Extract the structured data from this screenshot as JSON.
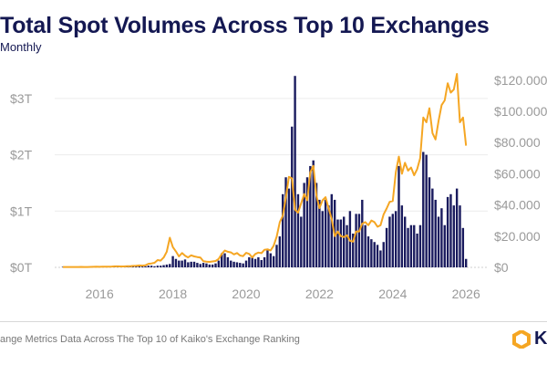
{
  "chart_data": {
    "type": "bar+line",
    "title": "Total Spot Volumes Across Top 10 Exchanges",
    "subtitle": "Monthly",
    "x_start": "2015-01",
    "x_frequency": "monthly",
    "x_ticks": [
      "2016",
      "2018",
      "2020",
      "2022",
      "2024",
      "2026"
    ],
    "y_left": {
      "ticks": [
        "$0T",
        "$1T",
        "$2T",
        "$3T"
      ],
      "tick_values": [
        0,
        1,
        2,
        3
      ],
      "range": [
        0,
        3.5
      ],
      "unit": "trillion USD"
    },
    "y_right": {
      "ticks": [
        "$0",
        "$20.000",
        "$40.000",
        "$60.000",
        "$80.000",
        "$100.000",
        "$120.000"
      ],
      "tick_values": [
        0,
        20000,
        40000,
        60000,
        80000,
        100000,
        120000
      ],
      "range": [
        0,
        124000
      ]
    },
    "grid": true,
    "series": [
      {
        "type": "bar",
        "axis": "left",
        "color": "#1a1b5e",
        "values": [
          0.01,
          0.01,
          0.01,
          0.01,
          0.01,
          0.01,
          0.01,
          0.01,
          0.01,
          0.01,
          0.01,
          0.01,
          0.01,
          0.01,
          0.01,
          0.01,
          0.02,
          0.03,
          0.02,
          0.01,
          0.01,
          0.02,
          0.02,
          0.03,
          0.03,
          0.03,
          0.02,
          0.02,
          0.03,
          0.03,
          0.02,
          0.03,
          0.03,
          0.04,
          0.05,
          0.06,
          0.2,
          0.15,
          0.12,
          0.12,
          0.14,
          0.09,
          0.1,
          0.1,
          0.08,
          0.06,
          0.08,
          0.07,
          0.05,
          0.05,
          0.07,
          0.12,
          0.25,
          0.25,
          0.18,
          0.12,
          0.1,
          0.09,
          0.08,
          0.07,
          0.12,
          0.18,
          0.2,
          0.15,
          0.18,
          0.13,
          0.18,
          0.3,
          0.25,
          0.2,
          0.4,
          0.55,
          1.3,
          1.6,
          1.4,
          2.5,
          3.4,
          1.3,
          0.9,
          1.5,
          1.6,
          1.8,
          1.9,
          1.5,
          1.2,
          1.0,
          1.2,
          1.1,
          1.3,
          1.2,
          0.85,
          0.85,
          0.9,
          0.75,
          1.0,
          0.6,
          0.95,
          0.95,
          1.2,
          0.75,
          0.55,
          0.5,
          0.45,
          0.4,
          0.3,
          0.45,
          0.7,
          0.9,
          0.95,
          1.0,
          1.8,
          1.1,
          0.9,
          0.7,
          0.75,
          0.75,
          0.6,
          0.75,
          2.05,
          2.0,
          1.6,
          1.4,
          1.2,
          0.9,
          1.05,
          0.75,
          1.25,
          1.3,
          1.1,
          1.4,
          1.1,
          0.7,
          0.15
        ]
      },
      {
        "type": "line",
        "axis": "right",
        "color": "#f5a623",
        "values": [
          220,
          250,
          250,
          230,
          230,
          260,
          280,
          230,
          240,
          310,
          380,
          430,
          370,
          440,
          420,
          450,
          530,
          670,
          620,
          570,
          610,
          700,
          740,
          960,
          1000,
          1200,
          1100,
          1300,
          2300,
          2500,
          2900,
          4700,
          4300,
          6400,
          10000,
          19000,
          13000,
          10300,
          7000,
          9200,
          7500,
          6400,
          7700,
          7000,
          6600,
          6300,
          4000,
          3700,
          3500,
          3800,
          4100,
          5300,
          8600,
          10800,
          10000,
          9600,
          8300,
          9200,
          7600,
          7200,
          9300,
          8600,
          6400,
          8600,
          9500,
          9100,
          11300,
          11600,
          10800,
          13800,
          19700,
          29000,
          33000,
          45000,
          58000,
          57000,
          37000,
          35000,
          41000,
          47000,
          43000,
          61000,
          65000,
          46000,
          38000,
          43000,
          45000,
          38000,
          31000,
          20000,
          23000,
          20000,
          19400,
          20500,
          17000,
          16500,
          23000,
          23000,
          28000,
          29000,
          27000,
          30000,
          29000,
          26000,
          27000,
          34000,
          37700,
          42000,
          42500,
          61000,
          71000,
          60000,
          67000,
          62000,
          64000,
          59000,
          63000,
          70000,
          96000,
          93000,
          102000,
          86000,
          82000,
          94000,
          104000,
          107000,
          118000,
          112000,
          114000,
          124000,
          93000,
          96000,
          78000
        ]
      }
    ]
  },
  "footer": {
    "source_text": "ange Metrics Data Across The Top 10 of Kaiko's Exchange Ranking",
    "logo_text": "K",
    "logo_color": "#f5a623"
  }
}
